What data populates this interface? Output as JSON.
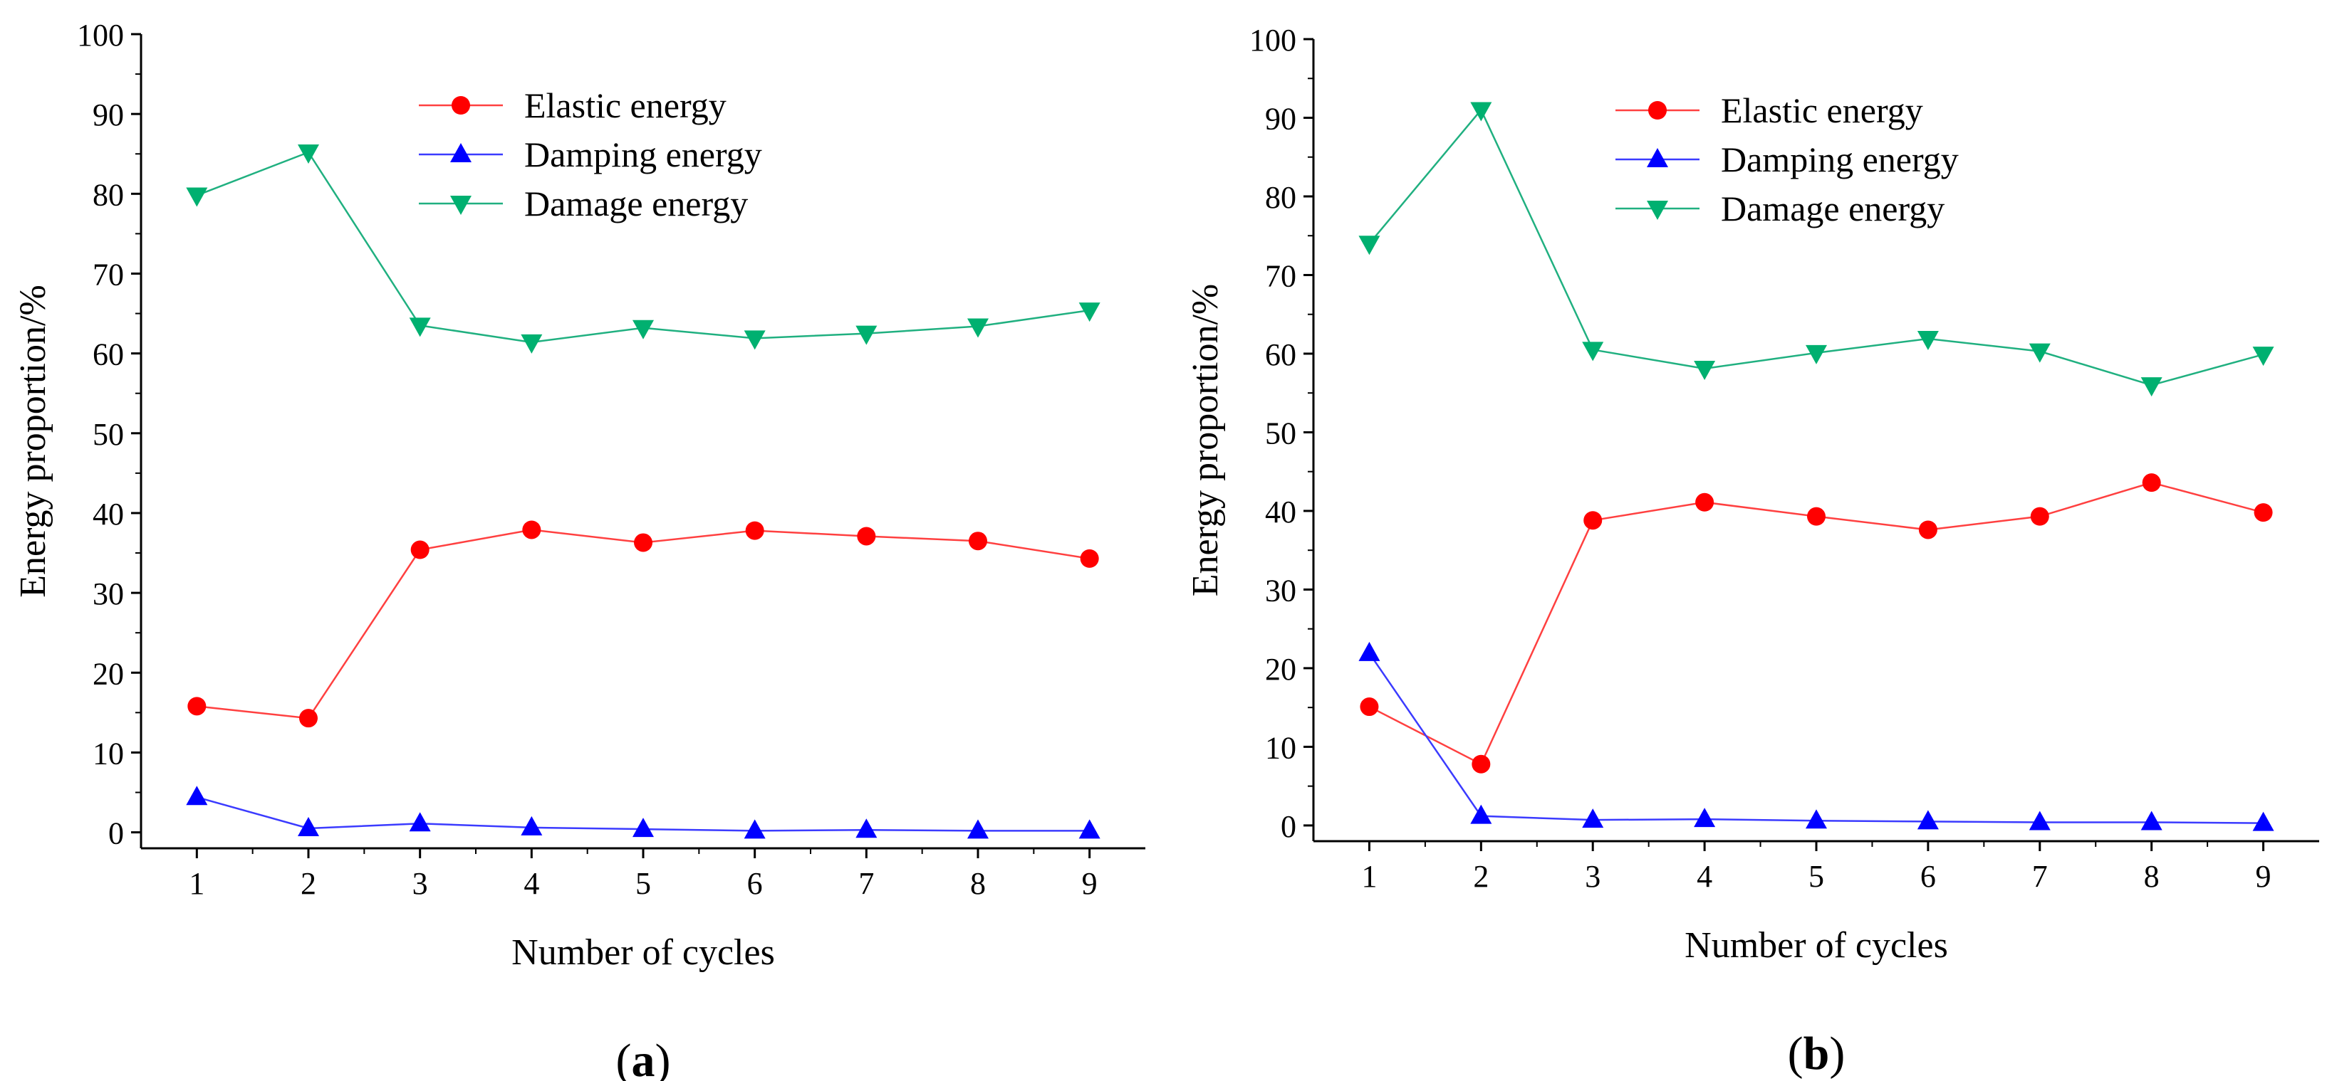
{
  "chart_data": [
    {
      "type": "line",
      "panel_label": "a",
      "xlabel": "Number of cycles",
      "ylabel": "Energy proportion/%",
      "x": [
        1,
        2,
        3,
        4,
        5,
        6,
        7,
        8,
        9
      ],
      "xlim": [
        0.5,
        9.5
      ],
      "ylim": [
        -2,
        100
      ],
      "yticks": [
        0,
        10,
        20,
        30,
        40,
        50,
        60,
        70,
        80,
        90,
        100
      ],
      "legend_position": "top-center",
      "series": [
        {
          "name": "Elastic energy",
          "marker": "circle",
          "color": "#ff0000",
          "line_color": "#ff4040",
          "values": [
            15.8,
            14.3,
            35.4,
            37.9,
            36.3,
            37.8,
            37.1,
            36.5,
            34.3
          ]
        },
        {
          "name": "Damping energy",
          "marker": "triangle-up",
          "color": "#0000ff",
          "line_color": "#3b3bff",
          "values": [
            4.4,
            0.5,
            1.1,
            0.6,
            0.4,
            0.2,
            0.3,
            0.2,
            0.2
          ]
        },
        {
          "name": "Damage energy",
          "marker": "triangle-down",
          "color": "#00b070",
          "line_color": "#20b080",
          "values": [
            79.8,
            85.2,
            63.5,
            61.4,
            63.2,
            61.9,
            62.5,
            63.4,
            65.4
          ]
        }
      ]
    },
    {
      "type": "line",
      "panel_label": "b",
      "xlabel": "Number of cycles",
      "ylabel": "Energy proportion/%",
      "x": [
        1,
        2,
        3,
        4,
        5,
        6,
        7,
        8,
        9
      ],
      "xlim": [
        0.5,
        9.5
      ],
      "ylim": [
        -2,
        100
      ],
      "yticks": [
        0,
        10,
        20,
        30,
        40,
        50,
        60,
        70,
        80,
        90,
        100
      ],
      "legend_position": "top-center",
      "series": [
        {
          "name": "Elastic energy",
          "marker": "circle",
          "color": "#ff0000",
          "line_color": "#ff4040",
          "values": [
            15.1,
            7.8,
            38.8,
            41.1,
            39.3,
            37.6,
            39.3,
            43.6,
            39.8
          ]
        },
        {
          "name": "Damping energy",
          "marker": "triangle-up",
          "color": "#0000ff",
          "line_color": "#3b3bff",
          "values": [
            21.9,
            1.2,
            0.7,
            0.8,
            0.6,
            0.5,
            0.4,
            0.4,
            0.3
          ]
        },
        {
          "name": "Damage energy",
          "marker": "triangle-down",
          "color": "#00b070",
          "line_color": "#20b080",
          "values": [
            74.0,
            91.0,
            60.5,
            58.1,
            60.1,
            61.9,
            60.3,
            56.0,
            59.9
          ]
        }
      ]
    }
  ]
}
